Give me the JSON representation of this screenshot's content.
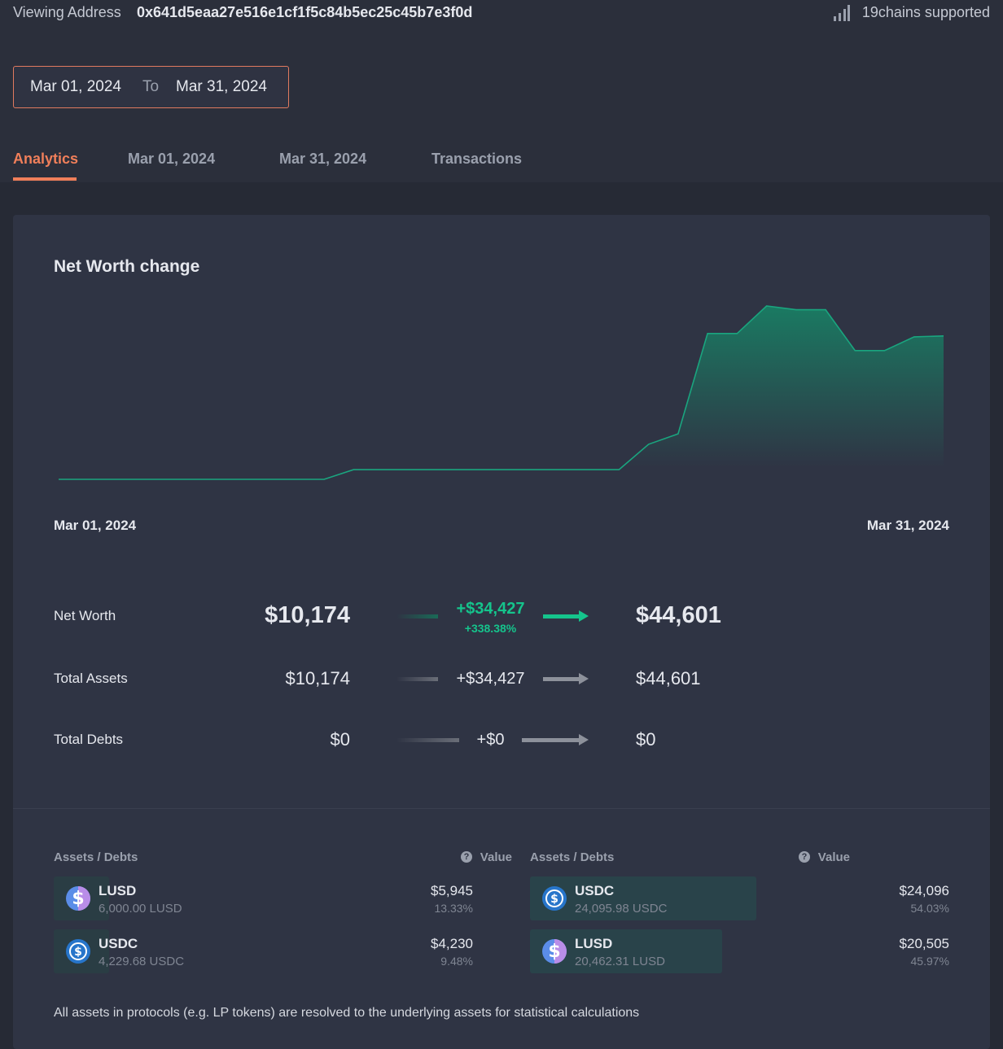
{
  "header": {
    "label": "Viewing Address",
    "address": "0x641d5eaa27e516e1cf1f5c84b5ec25c45b7e3f0d",
    "chains": "19chains supported"
  },
  "date_range": {
    "from": "Mar 01, 2024",
    "separator": "To",
    "to": "Mar 31, 2024"
  },
  "tabs": [
    "Analytics",
    "Mar 01, 2024",
    "Mar 31, 2024",
    "Transactions"
  ],
  "chart_data": {
    "type": "area",
    "title": "Net Worth change",
    "color": "#1aa57f",
    "categories": [
      "Mar 01, 2024",
      null,
      null,
      null,
      null,
      null,
      null,
      null,
      null,
      null,
      null,
      null,
      null,
      null,
      null,
      null,
      null,
      null,
      null,
      null,
      null,
      null,
      null,
      null,
      null,
      null,
      null,
      null,
      null,
      null,
      "Mar 31, 2024"
    ],
    "values": [
      10174,
      10174,
      10174,
      10174,
      10174,
      10174,
      10174,
      10174,
      10174,
      10174,
      12500,
      12500,
      12500,
      12500,
      12500,
      12500,
      12500,
      12500,
      12500,
      12500,
      18600,
      21100,
      45200,
      45200,
      51800,
      50900,
      50900,
      41100,
      41100,
      44400,
      44601
    ]
  },
  "summary": {
    "rows": [
      {
        "name": "Net Worth",
        "start": "$10,174",
        "change": "+$34,427",
        "change_pct": "+338.38%",
        "end": "$44,601"
      },
      {
        "name": "Total Assets",
        "start": "$10,174",
        "change": "+$34,427",
        "end": "$44,601"
      },
      {
        "name": "Total Debts",
        "start": "$0",
        "change": "+$0",
        "end": "$0"
      }
    ]
  },
  "assets": [
    {
      "header": {
        "name": "Assets / Debts",
        "value": "Value"
      },
      "rows": [
        {
          "symbol": "LUSD",
          "amount": "6,000.00 LUSD",
          "value": "$5,945",
          "share": "13.33%"
        },
        {
          "symbol": "USDC",
          "amount": "4,229.68 USDC",
          "value": "$4,230",
          "share": "9.48%"
        }
      ]
    },
    {
      "header": {
        "name": "Assets / Debts",
        "value": "Value"
      },
      "rows": [
        {
          "symbol": "USDC",
          "amount": "24,095.98 USDC",
          "value": "$24,096",
          "share": "54.03%"
        },
        {
          "symbol": "LUSD",
          "amount": "20,462.31 LUSD",
          "value": "$20,505",
          "share": "45.97%"
        }
      ]
    }
  ],
  "footnote": "All assets in protocols (e.g. LP tokens) are resolved to the underlying assets for statistical calculations"
}
